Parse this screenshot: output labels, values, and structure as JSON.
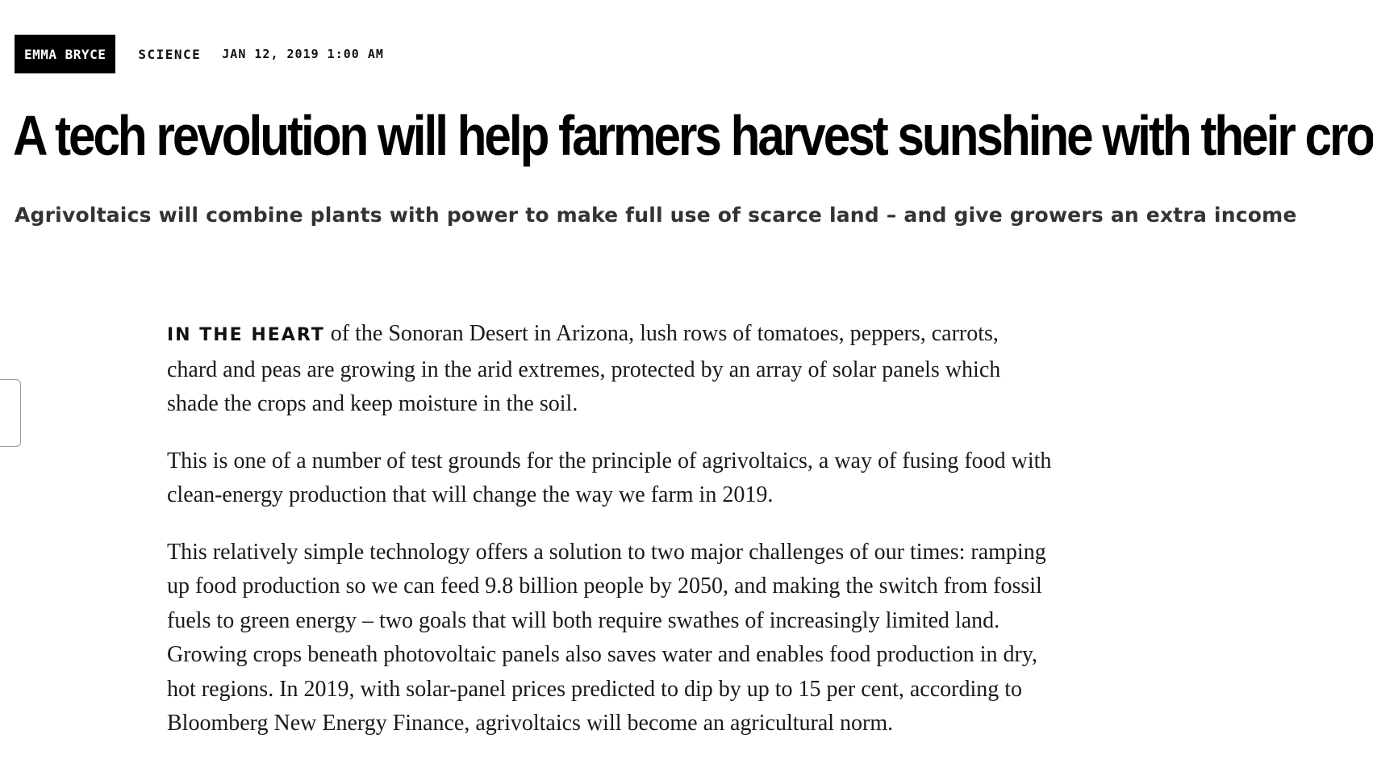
{
  "article": {
    "author": "EMMA BRYCE",
    "category": "SCIENCE",
    "date": "JAN 12, 2019 1:00 AM",
    "headline": "A tech revolution will help farmers harvest sunshine with their crops",
    "subheadline": "Agrivoltaics will combine plants with power to make full use of scarce land – and give growers an extra income",
    "lead_in": "IN THE HEART",
    "paragraphs": [
      " of the Sonoran Desert in Arizona, lush rows of tomatoes, peppers, carrots, chard and peas are growing in the arid extremes, protected by an array of solar panels which shade the crops and keep moisture in the soil.",
      "This is one of a number of test grounds for the principle of agrivoltaics, a way of fusing food with clean-energy production that will change the way we farm in 2019.",
      "This relatively simple technology offers a solution to two major challenges of our times: ramping up food production so we can feed 9.8 billion people by 2050, and making the switch from fossil fuels to green energy – two goals that will both require swathes of increasingly limited land. Growing crops beneath photovoltaic panels also saves water and enables food production in dry, hot regions. In 2019, with solar-panel prices predicted to dip by up to 15 per cent, according to Bloomberg New Energy Finance, agrivoltaics will become an agricultural norm."
    ]
  }
}
